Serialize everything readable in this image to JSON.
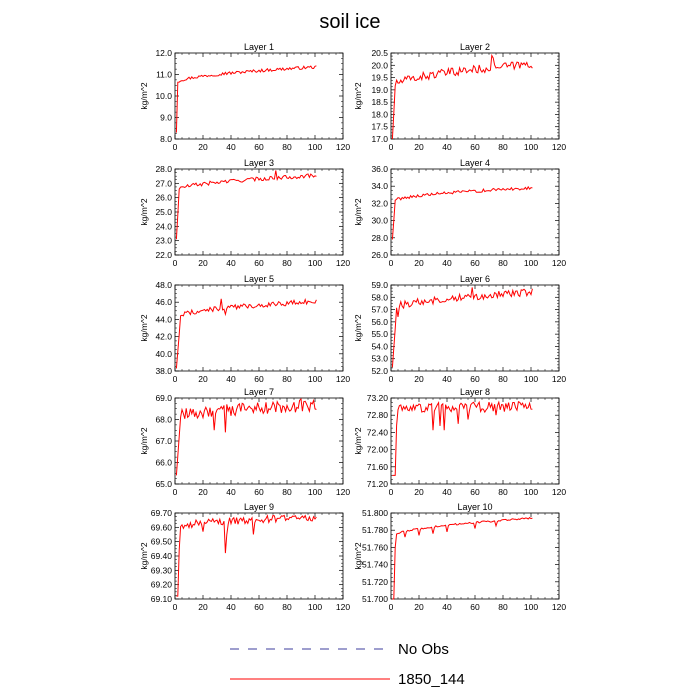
{
  "figure": {
    "title": "soil ice",
    "line_color": "#ff0000",
    "obs_color": "#3d3d9e"
  },
  "legend": {
    "position": "bottom-center",
    "entries": [
      {
        "label": "No Obs",
        "style": "dashed",
        "color": "#3d3d9e"
      },
      {
        "label": "1850_144",
        "style": "solid",
        "color": "#ff0000"
      }
    ]
  },
  "chart_data": [
    {
      "type": "line",
      "title": "Layer 1",
      "ylabel": "kg/m^2",
      "xlim": [
        0,
        120
      ],
      "xticks": [
        0,
        20,
        40,
        60,
        80,
        100,
        120
      ],
      "ylim": [
        8.0,
        12.0
      ],
      "yticks": [
        8.0,
        9.0,
        10.0,
        11.0,
        12.0
      ],
      "tick_labels": [
        "8.0",
        "9.0",
        "10.0",
        "11.0",
        "12.0"
      ],
      "series": [
        {
          "x_start": 1,
          "x_end": 101,
          "start": 8.3,
          "plateau": 10.6,
          "settle": 1,
          "final": 11.35,
          "noise": 0.07,
          "dips": [
            [
              36,
              11.1
            ]
          ]
        }
      ]
    },
    {
      "type": "line",
      "title": "Layer 2",
      "ylabel": "kg/m^2",
      "xlim": [
        0,
        120
      ],
      "xticks": [
        0,
        20,
        40,
        60,
        80,
        100,
        120
      ],
      "ylim": [
        17.0,
        20.5
      ],
      "yticks": [
        17.0,
        17.5,
        18.0,
        18.5,
        19.0,
        19.5,
        20.0,
        20.5
      ],
      "tick_labels": [
        "17.0",
        "17.5",
        "18.0",
        "18.5",
        "19.0",
        "19.5",
        "20.0",
        "20.5"
      ],
      "series": [
        {
          "x_start": 1,
          "x_end": 101,
          "start": 17.0,
          "plateau": 19.1,
          "settle": 2,
          "final": 20.05,
          "noise": 0.17,
          "dips": [
            [
              72,
              20.4
            ],
            [
              73,
              20.3
            ]
          ]
        }
      ]
    },
    {
      "type": "line",
      "title": "Layer 3",
      "ylabel": "kg/m^2",
      "xlim": [
        0,
        120
      ],
      "xticks": [
        0,
        20,
        40,
        60,
        80,
        100,
        120
      ],
      "ylim": [
        22.0,
        28.0
      ],
      "yticks": [
        22.0,
        23.0,
        24.0,
        25.0,
        26.0,
        27.0,
        28.0
      ],
      "tick_labels": [
        "22.0",
        "23.0",
        "24.0",
        "25.0",
        "26.0",
        "27.0",
        "28.0"
      ],
      "series": [
        {
          "x_start": 1,
          "x_end": 101,
          "start": 23.1,
          "plateau": 26.5,
          "settle": 2,
          "final": 27.55,
          "noise": 0.14,
          "dips": [
            [
              72,
              27.9
            ]
          ]
        }
      ]
    },
    {
      "type": "line",
      "title": "Layer 4",
      "ylabel": "kg/m^2",
      "xlim": [
        0,
        120
      ],
      "xticks": [
        0,
        20,
        40,
        60,
        80,
        100,
        120
      ],
      "ylim": [
        26.0,
        36.0
      ],
      "yticks": [
        26.0,
        28.0,
        30.0,
        32.0,
        34.0,
        36.0
      ],
      "tick_labels": [
        "26.0",
        "28.0",
        "30.0",
        "32.0",
        "34.0",
        "36.0"
      ],
      "series": [
        {
          "x_start": 1,
          "x_end": 101,
          "start": 27.8,
          "plateau": 32.2,
          "settle": 2,
          "final": 33.8,
          "noise": 0.18,
          "dips": []
        }
      ]
    },
    {
      "type": "line",
      "title": "Layer 5",
      "ylabel": "kg/m^2",
      "xlim": [
        0,
        120
      ],
      "xticks": [
        0,
        20,
        40,
        60,
        80,
        100,
        120
      ],
      "ylim": [
        38.0,
        48.0
      ],
      "yticks": [
        38.0,
        40.0,
        42.0,
        44.0,
        46.0,
        48.0
      ],
      "tick_labels": [
        "38.0",
        "40.0",
        "42.0",
        "44.0",
        "46.0",
        "48.0"
      ],
      "series": [
        {
          "x_start": 1,
          "x_end": 101,
          "start": 38.3,
          "plateau": 44.2,
          "settle": 3,
          "final": 46.1,
          "noise": 0.3,
          "dips": [
            [
              33,
              46.4
            ],
            [
              36,
              44.6
            ]
          ]
        }
      ]
    },
    {
      "type": "line",
      "title": "Layer 6",
      "ylabel": "kg/m^2",
      "xlim": [
        0,
        120
      ],
      "xticks": [
        0,
        20,
        40,
        60,
        80,
        100,
        120
      ],
      "ylim": [
        52.0,
        59.0
      ],
      "yticks": [
        52.0,
        53.0,
        54.0,
        55.0,
        56.0,
        57.0,
        58.0,
        59.0
      ],
      "tick_labels": [
        "52.0",
        "53.0",
        "54.0",
        "55.0",
        "56.0",
        "57.0",
        "58.0",
        "59.0"
      ],
      "series": [
        {
          "x_start": 1,
          "x_end": 101,
          "start": 52.3,
          "plateau": 57.0,
          "settle": 3,
          "final": 58.4,
          "noise": 0.3,
          "dips": [
            [
              5,
              56.4
            ],
            [
              58,
              58.8
            ]
          ]
        }
      ]
    },
    {
      "type": "line",
      "title": "Layer 7",
      "ylabel": "kg/m^2",
      "xlim": [
        0,
        120
      ],
      "xticks": [
        0,
        20,
        40,
        60,
        80,
        100,
        120
      ],
      "ylim": [
        65.0,
        69.0
      ],
      "yticks": [
        65.0,
        66.0,
        67.0,
        68.0,
        69.0
      ],
      "tick_labels": [
        "65.0",
        "66.0",
        "67.0",
        "68.0",
        "69.0"
      ],
      "series": [
        {
          "x_start": 1,
          "x_end": 101,
          "start": 65.4,
          "plateau": 68.1,
          "settle": 3,
          "final": 68.65,
          "noise": 0.28,
          "dips": [
            [
              36,
              67.4
            ],
            [
              28,
              67.5
            ],
            [
              90,
              68.95
            ]
          ]
        }
      ]
    },
    {
      "type": "line",
      "title": "Layer 8",
      "ylabel": "kg/m^2",
      "xlim": [
        0,
        120
      ],
      "xticks": [
        0,
        20,
        40,
        60,
        80,
        100,
        120
      ],
      "ylim": [
        71.2,
        73.2
      ],
      "yticks": [
        71.2,
        71.6,
        72.0,
        72.4,
        72.8,
        73.2
      ],
      "tick_labels": [
        "71.20",
        "71.60",
        "72.00",
        "72.40",
        "72.80",
        "73.20"
      ],
      "series": [
        {
          "x_start": 1,
          "x_end": 101,
          "start": 71.4,
          "plateau": 72.95,
          "settle": 4,
          "final": 73.0,
          "noise": 0.12,
          "dips": [
            [
              2,
              71.4
            ],
            [
              3,
              71.4
            ],
            [
              30,
              72.45
            ],
            [
              35,
              72.55
            ],
            [
              38,
              72.45
            ],
            [
              48,
              72.6
            ],
            [
              55,
              72.7
            ],
            [
              75,
              72.8
            ]
          ]
        }
      ]
    },
    {
      "type": "line",
      "title": "Layer 9",
      "ylabel": "kg/m^2",
      "xlim": [
        0,
        120
      ],
      "xticks": [
        0,
        20,
        40,
        60,
        80,
        100,
        120
      ],
      "ylim": [
        69.1,
        69.7
      ],
      "yticks": [
        69.1,
        69.2,
        69.3,
        69.4,
        69.5,
        69.6,
        69.7
      ],
      "tick_labels": [
        "69.10",
        "69.20",
        "69.30",
        "69.40",
        "69.50",
        "69.60",
        "69.70"
      ],
      "series": [
        {
          "x_start": 1,
          "x_end": 101,
          "start": 69.12,
          "plateau": 69.6,
          "settle": 3,
          "final": 69.67,
          "noise": 0.025,
          "dips": [
            [
              2,
              69.12
            ],
            [
              36,
              69.42
            ],
            [
              37,
              69.55
            ],
            [
              56,
              69.55
            ],
            [
              20,
              69.57
            ]
          ]
        }
      ]
    },
    {
      "type": "line",
      "title": "Layer 10",
      "ylabel": "kg/m^2",
      "xlim": [
        0,
        120
      ],
      "xticks": [
        0,
        20,
        40,
        60,
        80,
        100,
        120
      ],
      "ylim": [
        51.7,
        51.8
      ],
      "yticks": [
        51.7,
        51.72,
        51.74,
        51.76,
        51.78,
        51.8
      ],
      "tick_labels": [
        "51.700",
        "51.720",
        "51.740",
        "51.760",
        "51.780",
        "51.800"
      ],
      "series": [
        {
          "x_start": 1,
          "x_end": 101,
          "start": 51.7,
          "plateau": 51.772,
          "settle": 3,
          "final": 51.794,
          "noise": 0.001,
          "dips": [
            [
              2,
              51.7
            ],
            [
              3,
              51.76
            ],
            [
              10,
              51.772
            ],
            [
              20,
              51.774
            ],
            [
              30,
              51.776
            ],
            [
              40,
              51.778
            ],
            [
              60,
              51.782
            ],
            [
              75,
              51.785
            ],
            [
              76,
              51.79
            ],
            [
              101,
              51.794
            ]
          ]
        }
      ]
    }
  ]
}
